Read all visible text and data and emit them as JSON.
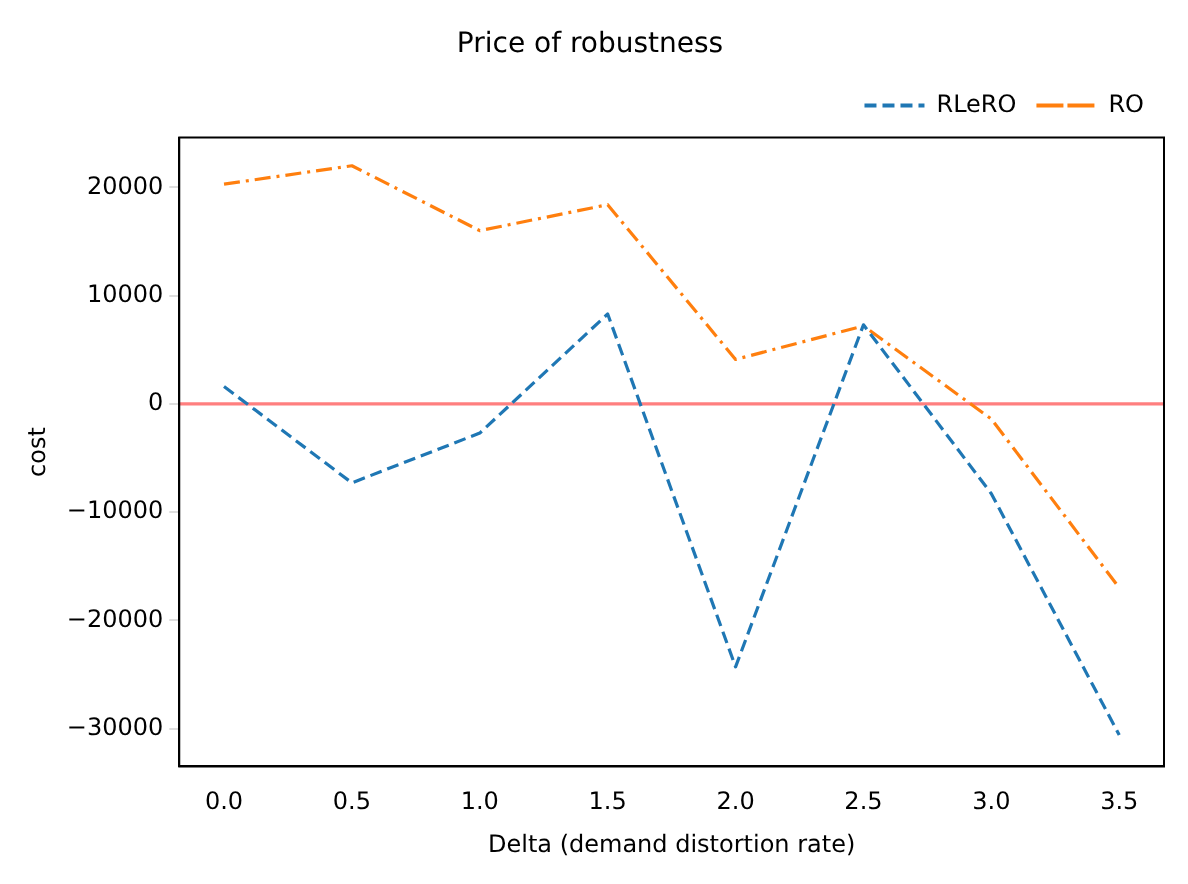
{
  "chart_data": {
    "type": "line",
    "title": "Price of robustness",
    "xlabel": "Delta (demand distortion rate)",
    "ylabel": "cost",
    "x": [
      0,
      0.5,
      1,
      1.5,
      2,
      2.5,
      3,
      3.5
    ],
    "series": [
      {
        "name": "RLeRO",
        "color": "#1f77b4",
        "line_style": "dashed",
        "values": [
          1600,
          -7300,
          -2700,
          8300,
          -24300,
          7300,
          -8300,
          -30600
        ]
      },
      {
        "name": "RO",
        "color": "#ff7f0e",
        "line_style": "dashdot",
        "values": [
          20300,
          22000,
          16000,
          18400,
          4100,
          7200,
          -1400,
          -17000
        ]
      }
    ],
    "xlim": [
      -0.175,
      3.675
    ],
    "xticks": [
      {
        "value": 0,
        "label": "0.0"
      },
      {
        "value": 0.5,
        "label": "0.5"
      },
      {
        "value": 1,
        "label": "1.0"
      },
      {
        "value": 1.5,
        "label": "1.5"
      },
      {
        "value": 2,
        "label": "2.0"
      },
      {
        "value": 2.5,
        "label": "2.5"
      },
      {
        "value": 3,
        "label": "3.0"
      },
      {
        "value": 3.5,
        "label": "3.5"
      }
    ],
    "ylim": [
      -33500,
      24600
    ],
    "yticks": [
      {
        "value": -30000,
        "label": "−30000"
      },
      {
        "value": -20000,
        "label": "−20000"
      },
      {
        "value": -10000,
        "label": "−10000"
      },
      0,
      10000,
      20000
    ],
    "ref_lines": [
      {
        "axis": "y",
        "value": 0,
        "color": "#ff7f7f"
      }
    ],
    "legend": "top right",
    "grid": false,
    "marker": "none"
  }
}
